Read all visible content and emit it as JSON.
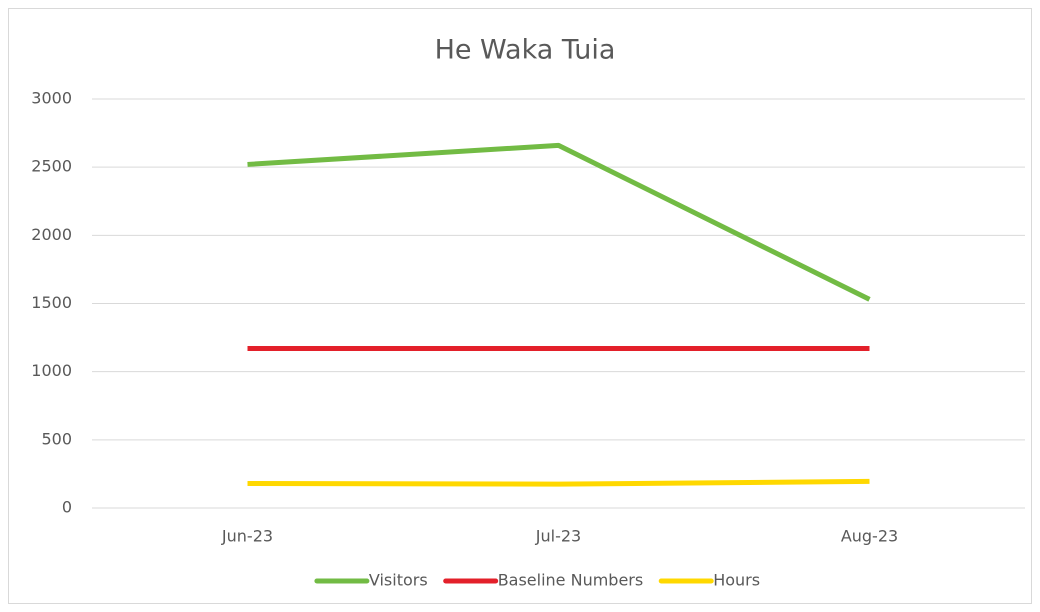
{
  "chart_data": {
    "type": "line",
    "title": "He Waka Tuia",
    "categories": [
      "Jun-23",
      "Jul-23",
      "Aug-23"
    ],
    "series": [
      {
        "name": "Visitors",
        "color": "#72bb44",
        "values": [
          2520,
          2660,
          1530
        ]
      },
      {
        "name": "Baseline Numbers",
        "color": "#e3202a",
        "values": [
          1170,
          1170,
          1170
        ]
      },
      {
        "name": "Hours",
        "color": "#ffd800",
        "values": [
          180,
          175,
          195
        ]
      }
    ],
    "ylim": [
      0,
      3000
    ],
    "yticks": [
      0,
      500,
      1000,
      1500,
      2000,
      2500,
      3000
    ],
    "grid": true,
    "legend": "bottom"
  }
}
